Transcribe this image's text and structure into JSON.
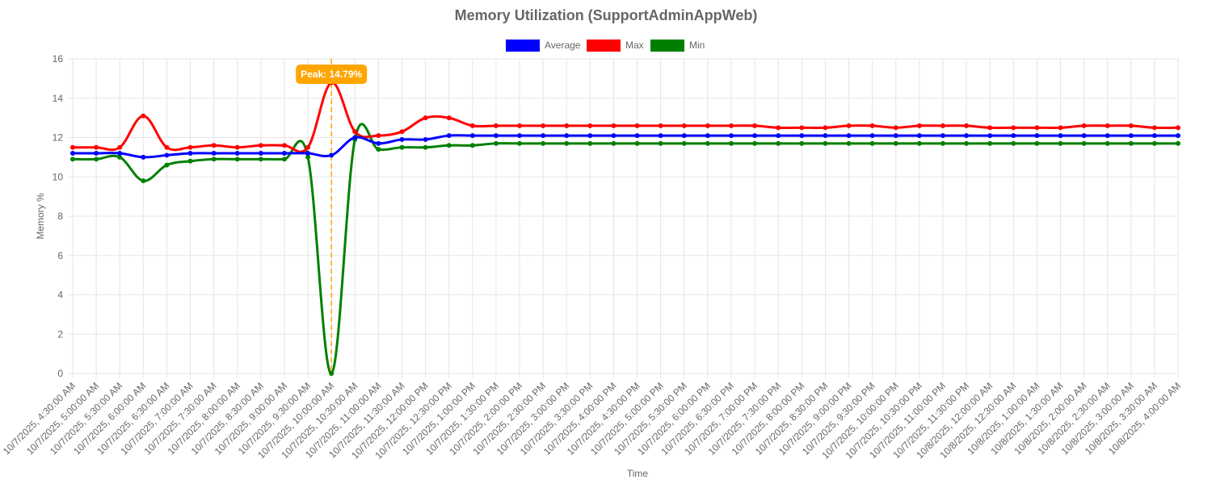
{
  "chart_data": {
    "type": "line",
    "title": "Memory Utilization (SupportAdminAppWeb)",
    "xlabel": "Time",
    "ylabel": "Memory %",
    "ylim": [
      0,
      16
    ],
    "yticks": [
      0,
      2,
      4,
      6,
      8,
      10,
      12,
      14,
      16
    ],
    "grid": true,
    "legend_position": "top-center",
    "categories": [
      "10/7/2025, 4:30:00 AM",
      "10/7/2025, 5:00:00 AM",
      "10/7/2025, 5:30:00 AM",
      "10/7/2025, 6:00:00 AM",
      "10/7/2025, 6:30:00 AM",
      "10/7/2025, 7:00:00 AM",
      "10/7/2025, 7:30:00 AM",
      "10/7/2025, 8:00:00 AM",
      "10/7/2025, 8:30:00 AM",
      "10/7/2025, 9:00:00 AM",
      "10/7/2025, 9:30:00 AM",
      "10/7/2025, 10:00:00 AM",
      "10/7/2025, 10:30:00 AM",
      "10/7/2025, 11:00:00 AM",
      "10/7/2025, 11:30:00 AM",
      "10/7/2025, 12:00:00 PM",
      "10/7/2025, 12:30:00 PM",
      "10/7/2025, 1:00:00 PM",
      "10/7/2025, 1:30:00 PM",
      "10/7/2025, 2:00:00 PM",
      "10/7/2025, 2:30:00 PM",
      "10/7/2025, 3:00:00 PM",
      "10/7/2025, 3:30:00 PM",
      "10/7/2025, 4:00:00 PM",
      "10/7/2025, 4:30:00 PM",
      "10/7/2025, 5:00:00 PM",
      "10/7/2025, 5:30:00 PM",
      "10/7/2025, 6:00:00 PM",
      "10/7/2025, 6:30:00 PM",
      "10/7/2025, 7:00:00 PM",
      "10/7/2025, 7:30:00 PM",
      "10/7/2025, 8:00:00 PM",
      "10/7/2025, 8:30:00 PM",
      "10/7/2025, 9:00:00 PM",
      "10/7/2025, 9:30:00 PM",
      "10/7/2025, 10:00:00 PM",
      "10/7/2025, 10:30:00 PM",
      "10/7/2025, 11:00:00 PM",
      "10/7/2025, 11:30:00 PM",
      "10/8/2025, 12:00:00 AM",
      "10/8/2025, 12:30:00 AM",
      "10/8/2025, 1:00:00 AM",
      "10/8/2025, 1:30:00 AM",
      "10/8/2025, 2:00:00 AM",
      "10/8/2025, 2:30:00 AM",
      "10/8/2025, 3:00:00 AM",
      "10/8/2025, 3:30:00 AM",
      "10/8/2025, 4:00:00 AM"
    ],
    "series": [
      {
        "name": "Average",
        "color": "#0000ff",
        "values": [
          11.2,
          11.2,
          11.2,
          11.0,
          11.1,
          11.2,
          11.2,
          11.2,
          11.2,
          11.2,
          11.2,
          11.1,
          12.0,
          11.7,
          11.9,
          11.9,
          12.1,
          12.1,
          12.1,
          12.1,
          12.1,
          12.1,
          12.1,
          12.1,
          12.1,
          12.1,
          12.1,
          12.1,
          12.1,
          12.1,
          12.1,
          12.1,
          12.1,
          12.1,
          12.1,
          12.1,
          12.1,
          12.1,
          12.1,
          12.1,
          12.1,
          12.1,
          12.1,
          12.1,
          12.1,
          12.1,
          12.1,
          12.1
        ]
      },
      {
        "name": "Max",
        "color": "#ff0000",
        "values": [
          11.5,
          11.5,
          11.5,
          13.1,
          11.5,
          11.5,
          11.6,
          11.5,
          11.6,
          11.6,
          11.5,
          14.79,
          12.3,
          12.1,
          12.3,
          13.0,
          13.0,
          12.6,
          12.6,
          12.6,
          12.6,
          12.6,
          12.6,
          12.6,
          12.6,
          12.6,
          12.6,
          12.6,
          12.6,
          12.6,
          12.5,
          12.5,
          12.5,
          12.6,
          12.6,
          12.5,
          12.6,
          12.6,
          12.6,
          12.5,
          12.5,
          12.5,
          12.5,
          12.6,
          12.6,
          12.6,
          12.5,
          12.5
        ]
      },
      {
        "name": "Min",
        "color": "#008000",
        "values": [
          10.9,
          10.9,
          11.0,
          9.8,
          10.6,
          10.8,
          10.9,
          10.9,
          10.9,
          10.9,
          11.0,
          0.0,
          11.9,
          11.4,
          11.5,
          11.5,
          11.6,
          11.6,
          11.7,
          11.7,
          11.7,
          11.7,
          11.7,
          11.7,
          11.7,
          11.7,
          11.7,
          11.7,
          11.7,
          11.7,
          11.7,
          11.7,
          11.7,
          11.7,
          11.7,
          11.7,
          11.7,
          11.7,
          11.7,
          11.7,
          11.7,
          11.7,
          11.7,
          11.7,
          11.7,
          11.7,
          11.7,
          11.7
        ]
      }
    ],
    "annotation": {
      "label": "Peak: 14.79%",
      "category": "10/7/2025, 10:00:00 AM",
      "value": 14.79,
      "line_color": "#ffa500",
      "box_color": "#ffa500"
    }
  }
}
